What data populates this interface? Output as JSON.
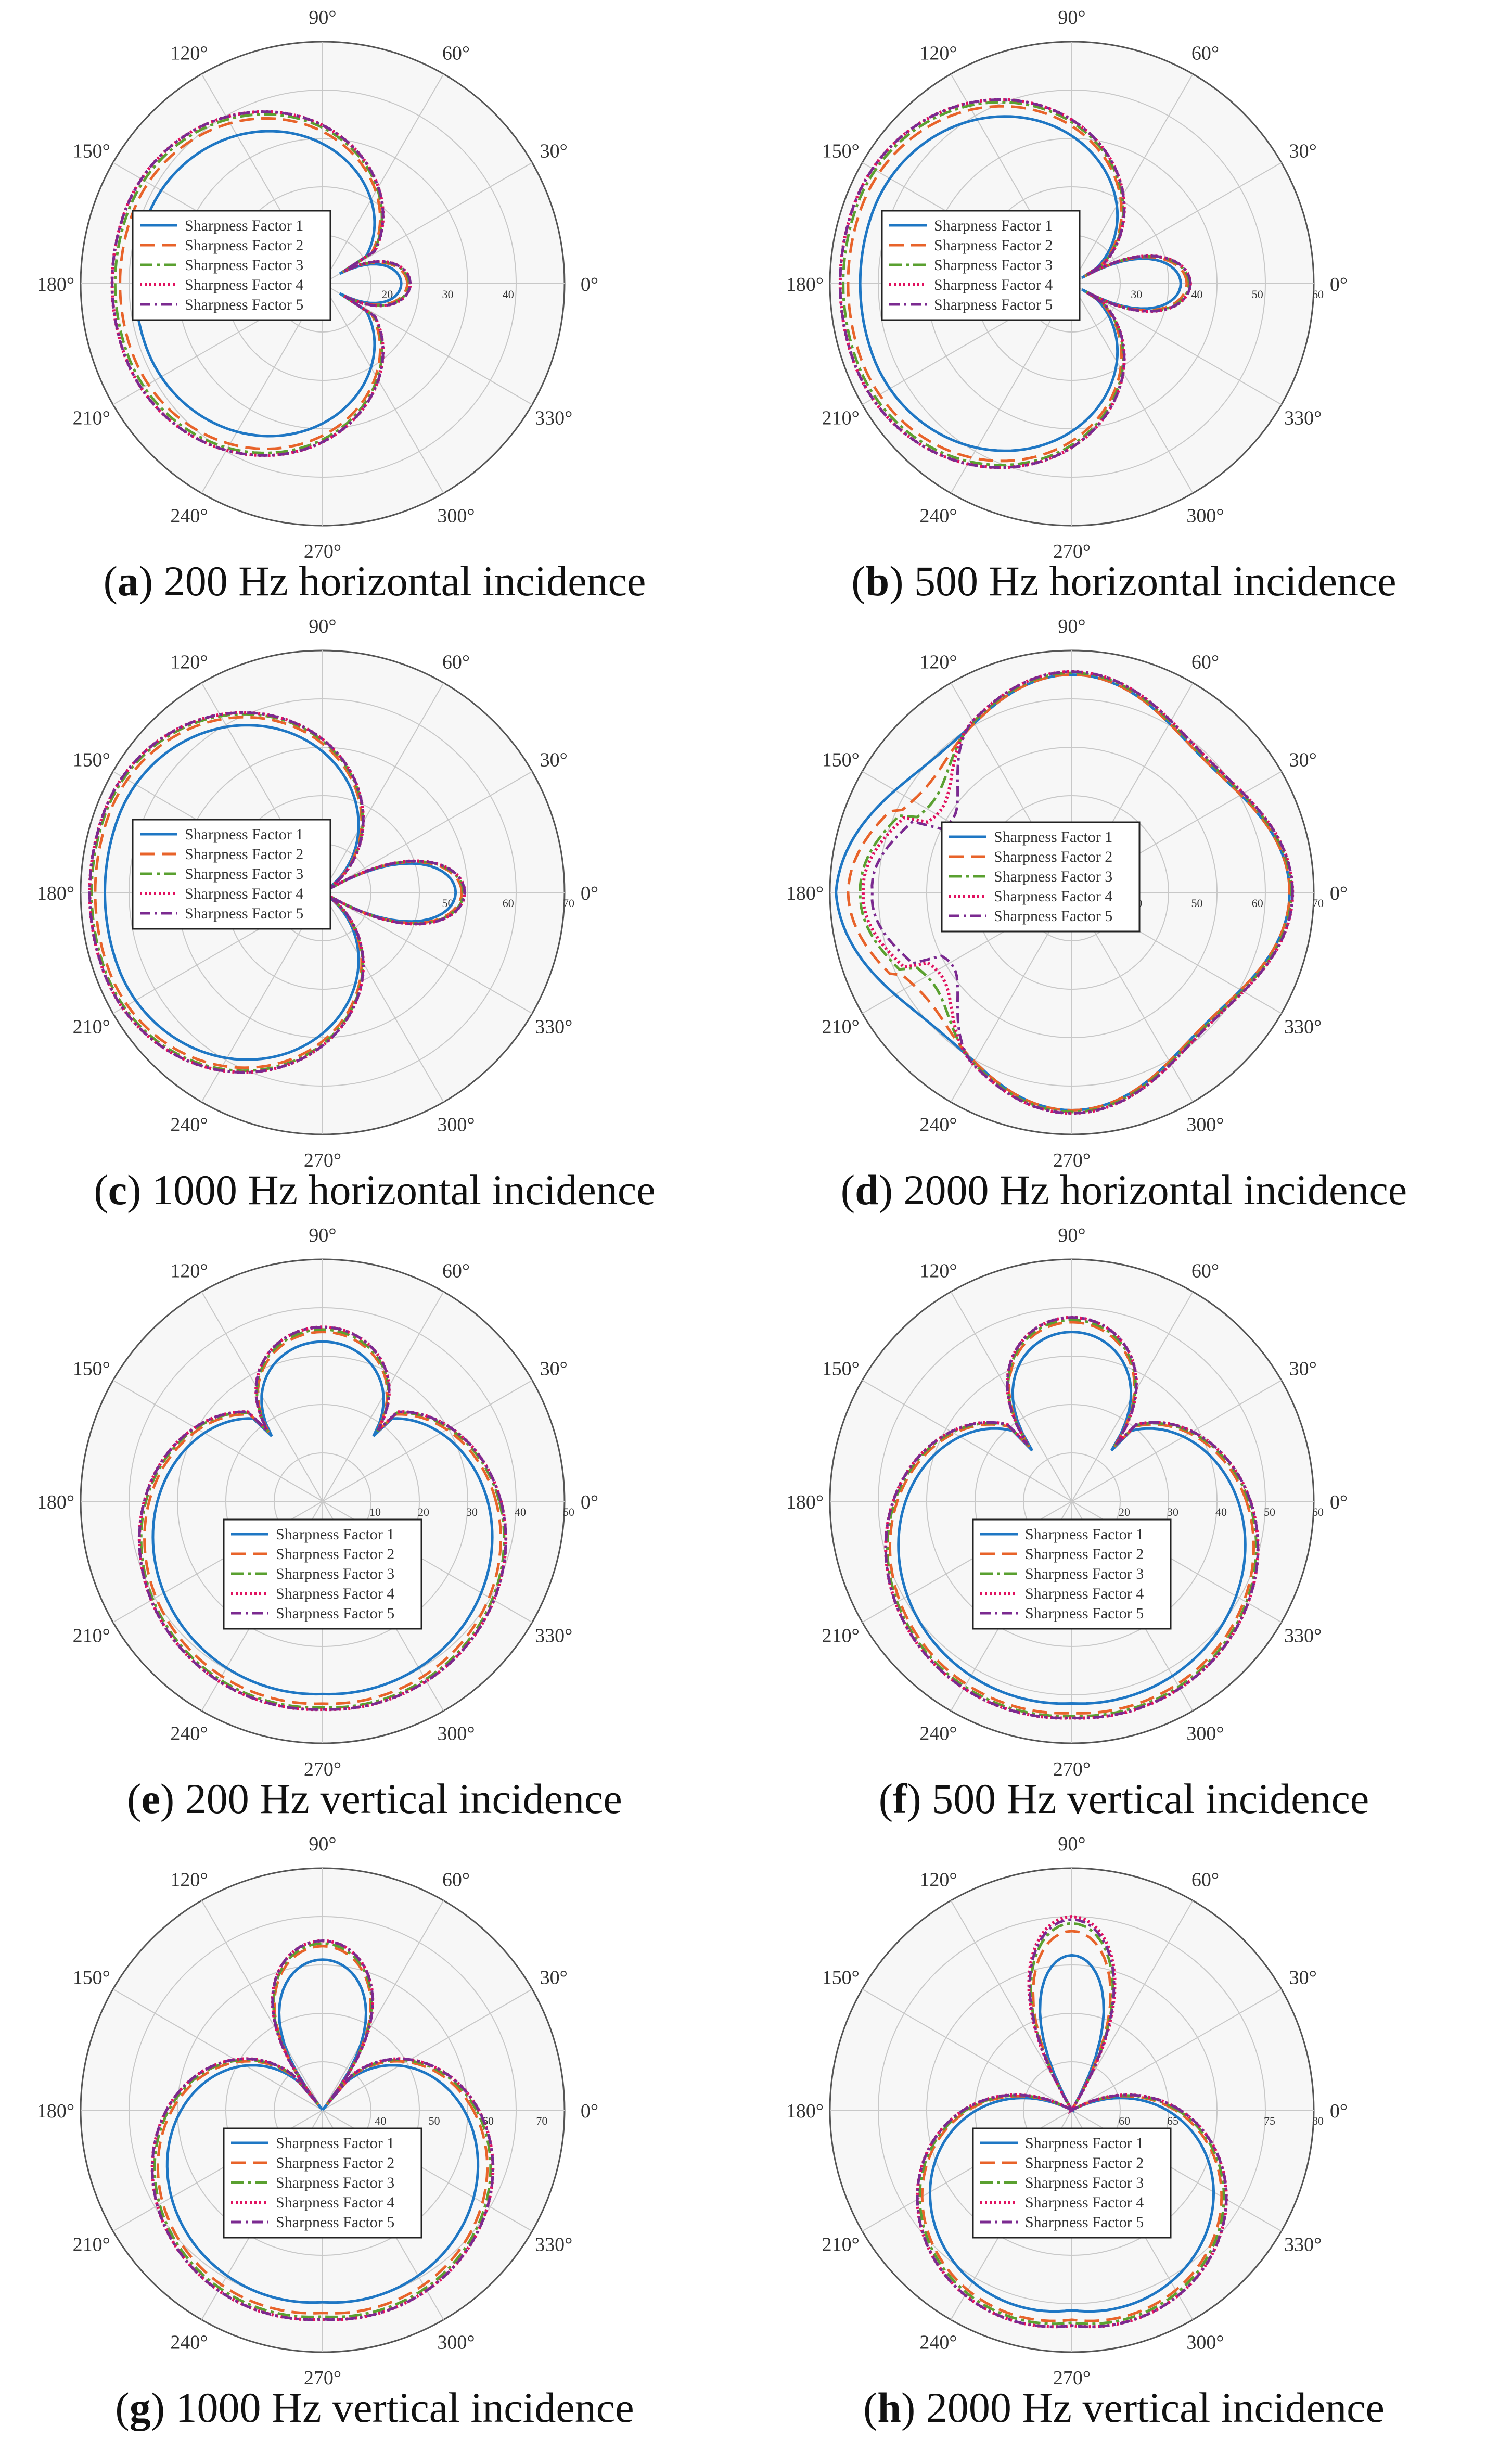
{
  "series_names": [
    "Sharpness Factor 1",
    "Sharpness Factor 2",
    "Sharpness Factor 3",
    "Sharpness Factor 4",
    "Sharpness Factor 5"
  ],
  "series_styles": [
    {
      "color": "#1f77c4",
      "dash": "",
      "width": 5
    },
    {
      "color": "#e8632a",
      "dash": "28,14",
      "width": 5
    },
    {
      "color": "#5aa030",
      "dash": "24,8,6,8",
      "width": 5
    },
    {
      "color": "#e0115f",
      "dash": "4,5",
      "width": 6
    },
    {
      "color": "#7b2a90",
      "dash": "20,8,5,8",
      "width": 5
    }
  ],
  "angle_labels": [
    "0°",
    "30°",
    "60°",
    "90°",
    "120°",
    "150°",
    "180°",
    "210°",
    "240°",
    "270°",
    "300°",
    "330°"
  ],
  "chart_data": [
    {
      "type": "polar",
      "letter": "a",
      "caption": "200 Hz horizontal incidence",
      "r_ticks": [
        "20",
        "30",
        "40"
      ],
      "rlim": [
        10,
        50
      ],
      "front": {
        "cx": 0,
        "cy": 0,
        "r": 0.72
      },
      "back": {
        "r": 0.93
      },
      "pattern": "horizontal",
      "series": [
        {
          "name": "Sharpness Factor 1",
          "front_r": 23,
          "back_r": 41,
          "notch": 0
        },
        {
          "name": "Sharpness Factor 2",
          "front_r": 24,
          "back_r": 43.5,
          "notch": 0
        },
        {
          "name": "Sharpness Factor 3",
          "front_r": 24.3,
          "back_r": 44.3,
          "notch": 0
        },
        {
          "name": "Sharpness Factor 4",
          "front_r": 24.5,
          "back_r": 44.8,
          "notch": 0
        },
        {
          "name": "Sharpness Factor 5",
          "front_r": 24.5,
          "back_r": 44.8,
          "notch": 0
        }
      ],
      "legend_pos": "left"
    },
    {
      "type": "polar",
      "letter": "b",
      "caption": "500 Hz horizontal incidence",
      "r_ticks": [
        "30",
        "40",
        "50",
        "60"
      ],
      "rlim": [
        20,
        60
      ],
      "pattern": "horizontal",
      "series": [
        {
          "name": "Sharpness Factor 1",
          "front_r": 38,
          "back_r": 55,
          "notch": 0
        },
        {
          "name": "Sharpness Factor 2",
          "front_r": 39,
          "back_r": 57,
          "notch": 0
        },
        {
          "name": "Sharpness Factor 3",
          "front_r": 39.4,
          "back_r": 57.8,
          "notch": 0
        },
        {
          "name": "Sharpness Factor 4",
          "front_r": 39.6,
          "back_r": 58.3,
          "notch": 0
        },
        {
          "name": "Sharpness Factor 5",
          "front_r": 39.6,
          "back_r": 58.3,
          "notch": 0
        }
      ],
      "legend_pos": "left"
    },
    {
      "type": "polar",
      "letter": "c",
      "caption": "1000 Hz horizontal incidence",
      "r_ticks": [
        "50",
        "60",
        "70"
      ],
      "rlim": [
        30,
        70
      ],
      "pattern": "horizontal",
      "series": [
        {
          "name": "Sharpness Factor 1",
          "front_r": 52,
          "back_r": 66,
          "notch": 0
        },
        {
          "name": "Sharpness Factor 2",
          "front_r": 53,
          "back_r": 67.6,
          "notch": 0
        },
        {
          "name": "Sharpness Factor 3",
          "front_r": 53.3,
          "back_r": 68.2,
          "notch": 0
        },
        {
          "name": "Sharpness Factor 4",
          "front_r": 53.5,
          "back_r": 68.5,
          "notch": 0
        },
        {
          "name": "Sharpness Factor 5",
          "front_r": 53.5,
          "back_r": 68.5,
          "notch": 0
        }
      ],
      "legend_pos": "left"
    },
    {
      "type": "polar",
      "letter": "d",
      "caption": "2000 Hz horizontal incidence",
      "r_ticks": [
        "40",
        "50",
        "60",
        "70"
      ],
      "rlim": [
        30,
        70
      ],
      "pattern": "clover",
      "series": [
        {
          "name": "Sharpness Factor 1",
          "front_r": 65,
          "back_r": 68,
          "notch": 0
        },
        {
          "name": "Sharpness Factor 2",
          "front_r": 65,
          "back_r": 66,
          "notch": 0.2
        },
        {
          "name": "Sharpness Factor 3",
          "front_r": 65.3,
          "back_r": 64,
          "notch": 0.35
        },
        {
          "name": "Sharpness Factor 4",
          "front_r": 65.5,
          "back_r": 63.5,
          "notch": 0.5
        },
        {
          "name": "Sharpness Factor 5",
          "front_r": 65.5,
          "back_r": 62,
          "notch": 0.65
        }
      ],
      "legend_pos": "center"
    },
    {
      "type": "polar",
      "letter": "e",
      "caption": "200 Hz vertical incidence",
      "r_ticks": [
        "10",
        "20",
        "30",
        "40",
        "50"
      ],
      "rlim": [
        0,
        50
      ],
      "pattern": "vertical",
      "series": [
        {
          "name": "Sharpness Factor 1",
          "front_r": 33,
          "back_r": 40,
          "notch": 0
        },
        {
          "name": "Sharpness Factor 2",
          "front_r": 35,
          "back_r": 42,
          "notch": 0
        },
        {
          "name": "Sharpness Factor 3",
          "front_r": 35.5,
          "back_r": 42.8,
          "notch": 0
        },
        {
          "name": "Sharpness Factor 4",
          "front_r": 36,
          "back_r": 43.2,
          "notch": 0
        },
        {
          "name": "Sharpness Factor 5",
          "front_r": 36,
          "back_r": 43.2,
          "notch": 0
        }
      ],
      "legend_pos": "bottom"
    },
    {
      "type": "polar",
      "letter": "f",
      "caption": "500 Hz vertical incidence",
      "r_ticks": [
        "20",
        "30",
        "40",
        "50",
        "60"
      ],
      "rlim": [
        10,
        60
      ],
      "pattern": "vertical",
      "series": [
        {
          "name": "Sharpness Factor 1",
          "front_r": 45,
          "back_r": 52,
          "notch": 0
        },
        {
          "name": "Sharpness Factor 2",
          "front_r": 47,
          "back_r": 54,
          "notch": 0
        },
        {
          "name": "Sharpness Factor 3",
          "front_r": 47.5,
          "back_r": 54.6,
          "notch": 0
        },
        {
          "name": "Sharpness Factor 4",
          "front_r": 48,
          "back_r": 55,
          "notch": 0
        },
        {
          "name": "Sharpness Factor 5",
          "front_r": 48,
          "back_r": 55,
          "notch": 0
        }
      ],
      "legend_pos": "bottom"
    },
    {
      "type": "polar",
      "letter": "g",
      "caption": "1000 Hz vertical incidence",
      "r_ticks": [
        "40",
        "50",
        "60",
        "70"
      ],
      "rlim": [
        30,
        75
      ],
      "pattern": "vertical",
      "series": [
        {
          "name": "Sharpness Factor 1",
          "front_r": 58,
          "back_r": 66,
          "notch": 0
        },
        {
          "name": "Sharpness Factor 2",
          "front_r": 60.5,
          "back_r": 68,
          "notch": 0
        },
        {
          "name": "Sharpness Factor 3",
          "front_r": 61,
          "back_r": 68.7,
          "notch": 0
        },
        {
          "name": "Sharpness Factor 4",
          "front_r": 61.5,
          "back_r": 69.2,
          "notch": 0
        },
        {
          "name": "Sharpness Factor 5",
          "front_r": 61.5,
          "back_r": 69.2,
          "notch": 0
        }
      ],
      "legend_pos": "bottom"
    },
    {
      "type": "polar",
      "letter": "h",
      "caption": "2000 Hz vertical incidence",
      "r_ticks": [
        "60",
        "65",
        "75",
        "80"
      ],
      "rlim": [
        55,
        80
      ],
      "pattern": "vertical",
      "series": [
        {
          "name": "Sharpness Factor 1",
          "front_r": 71,
          "back_r": 76,
          "notch": 0
        },
        {
          "name": "Sharpness Factor 2",
          "front_r": 73.5,
          "back_r": 77,
          "notch": 0
        },
        {
          "name": "Sharpness Factor 3",
          "front_r": 74.3,
          "back_r": 77.3,
          "notch": 0
        },
        {
          "name": "Sharpness Factor 4",
          "front_r": 75,
          "back_r": 77.6,
          "notch": 0
        },
        {
          "name": "Sharpness Factor 5",
          "front_r": 74.7,
          "back_r": 77.6,
          "notch": 0
        }
      ],
      "legend_pos": "bottom"
    }
  ]
}
